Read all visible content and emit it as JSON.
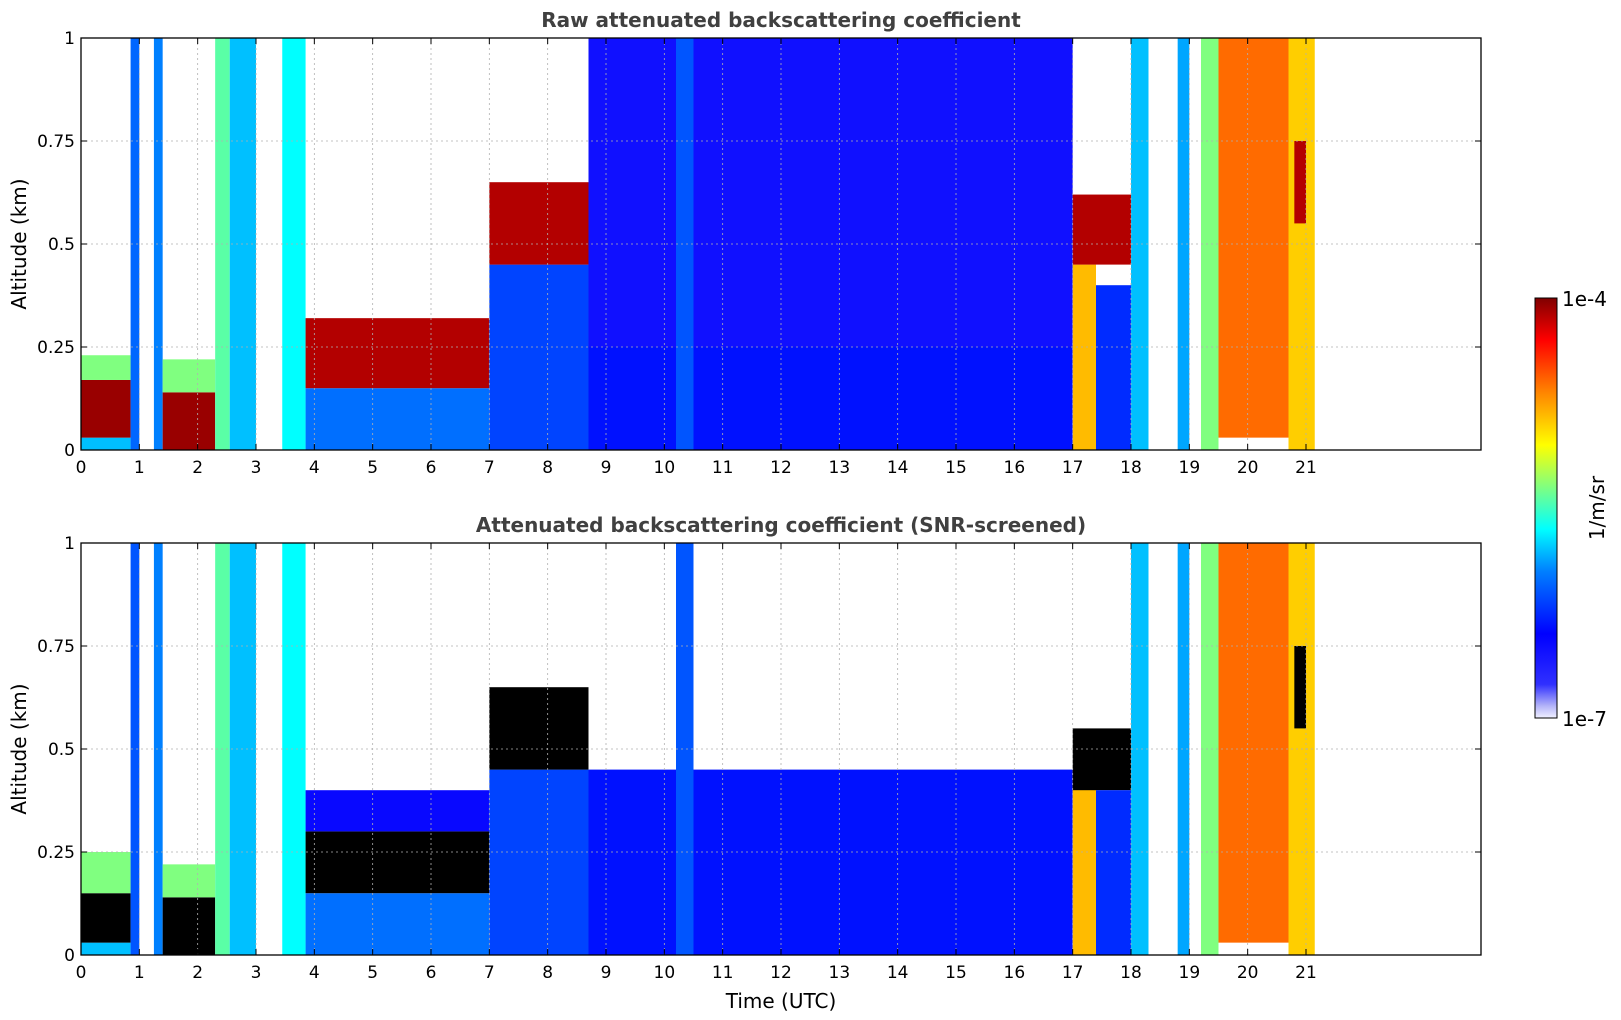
{
  "chart_data": [
    {
      "type": "heatmap",
      "title": "Raw attenuated backscattering coefficient",
      "xlabel": "",
      "ylabel": "Altitude (km)",
      "xlim": [
        0,
        24
      ],
      "ylim": [
        0,
        1
      ],
      "xticks": [
        "0",
        "1",
        "2",
        "3",
        "4",
        "5",
        "6",
        "7",
        "8",
        "9",
        "10",
        "11",
        "12",
        "13",
        "14",
        "15",
        "16",
        "17",
        "18",
        "19",
        "20",
        "21"
      ],
      "yticks": [
        "0",
        "0.25",
        "0.5",
        "0.75",
        "1"
      ],
      "grid": true,
      "data_extent_hours": [
        0,
        21.15
      ],
      "colorscale": "jet",
      "blocks": [
        {
          "t0": 0.0,
          "t1": 0.85,
          "y0": 0.0,
          "y1": 0.03,
          "level": 0.4
        },
        {
          "t0": 0.0,
          "t1": 0.85,
          "y0": 0.03,
          "y1": 0.17,
          "level": 0.98
        },
        {
          "t0": 0.0,
          "t1": 0.85,
          "y0": 0.17,
          "y1": 0.23,
          "level": 0.55
        },
        {
          "t0": 0.85,
          "t1": 1.0,
          "y0": 0.0,
          "y1": 1.0,
          "level": 0.32
        },
        {
          "t0": 1.25,
          "t1": 1.4,
          "y0": 0.0,
          "y1": 1.0,
          "level": 0.35
        },
        {
          "t0": 1.4,
          "t1": 2.3,
          "y0": 0.0,
          "y1": 0.14,
          "level": 0.98
        },
        {
          "t0": 1.4,
          "t1": 2.3,
          "y0": 0.14,
          "y1": 0.22,
          "level": 0.55
        },
        {
          "t0": 2.3,
          "t1": 2.55,
          "y0": 0.0,
          "y1": 1.0,
          "level": 0.52
        },
        {
          "t0": 2.55,
          "t1": 3.0,
          "y0": 0.0,
          "y1": 1.0,
          "level": 0.4
        },
        {
          "t0": 3.45,
          "t1": 3.85,
          "y0": 0.0,
          "y1": 1.0,
          "level": 0.45
        },
        {
          "t0": 3.85,
          "t1": 7.0,
          "y0": 0.0,
          "y1": 0.15,
          "level": 0.33
        },
        {
          "t0": 3.85,
          "t1": 7.0,
          "y0": 0.15,
          "y1": 0.32,
          "level": 0.96
        },
        {
          "t0": 7.0,
          "t1": 8.7,
          "y0": 0.0,
          "y1": 0.45,
          "level": 0.28
        },
        {
          "t0": 7.0,
          "t1": 8.7,
          "y0": 0.45,
          "y1": 0.65,
          "level": 0.96
        },
        {
          "t0": 8.7,
          "t1": 17.0,
          "y0": 0.0,
          "y1": 0.25,
          "level": 0.22
        },
        {
          "t0": 8.7,
          "t1": 17.0,
          "y0": 0.25,
          "y1": 1.0,
          "level": 0.16
        },
        {
          "t0": 10.2,
          "t1": 10.5,
          "y0": 0.0,
          "y1": 1.0,
          "level": 0.3
        },
        {
          "t0": 17.0,
          "t1": 17.4,
          "y0": 0.0,
          "y1": 0.45,
          "level": 0.72
        },
        {
          "t0": 17.0,
          "t1": 18.0,
          "y0": 0.45,
          "y1": 0.62,
          "level": 0.96
        },
        {
          "t0": 17.4,
          "t1": 18.0,
          "y0": 0.0,
          "y1": 0.4,
          "level": 0.25
        },
        {
          "t0": 18.0,
          "t1": 18.3,
          "y0": 0.0,
          "y1": 1.0,
          "level": 0.4
        },
        {
          "t0": 18.8,
          "t1": 19.0,
          "y0": 0.0,
          "y1": 1.0,
          "level": 0.38
        },
        {
          "t0": 19.2,
          "t1": 19.5,
          "y0": 0.0,
          "y1": 1.0,
          "level": 0.55
        },
        {
          "t0": 19.5,
          "t1": 20.7,
          "y0": 0.03,
          "y1": 1.0,
          "level": 0.8
        },
        {
          "t0": 20.7,
          "t1": 21.15,
          "y0": 0.0,
          "y1": 1.0,
          "level": 0.7
        },
        {
          "t0": 20.8,
          "t1": 21.0,
          "y0": 0.55,
          "y1": 0.75,
          "level": 0.96
        }
      ]
    },
    {
      "type": "heatmap",
      "title": "Attenuated backscattering coefficient (SNR-screened)",
      "xlabel": "Time (UTC)",
      "ylabel": "Altitude (km)",
      "xlim": [
        0,
        24
      ],
      "ylim": [
        0,
        1
      ],
      "xticks": [
        "0",
        "1",
        "2",
        "3",
        "4",
        "5",
        "6",
        "7",
        "8",
        "9",
        "10",
        "11",
        "12",
        "13",
        "14",
        "15",
        "16",
        "17",
        "18",
        "19",
        "20",
        "21"
      ],
      "yticks": [
        "0",
        "0.25",
        "0.5",
        "0.75",
        "1"
      ],
      "grid": true,
      "data_extent_hours": [
        0,
        21.15
      ],
      "colorscale": "jet",
      "blocks": [
        {
          "t0": 0.0,
          "t1": 0.85,
          "y0": 0.0,
          "y1": 0.03,
          "level": 0.4
        },
        {
          "t0": 0.0,
          "t1": 0.85,
          "y0": 0.03,
          "y1": 0.15,
          "level": 1.05
        },
        {
          "t0": 0.0,
          "t1": 0.85,
          "y0": 0.15,
          "y1": 0.25,
          "level": 0.55
        },
        {
          "t0": 0.85,
          "t1": 1.0,
          "y0": 0.0,
          "y1": 1.0,
          "level": 0.3
        },
        {
          "t0": 1.25,
          "t1": 1.4,
          "y0": 0.0,
          "y1": 1.0,
          "level": 0.35
        },
        {
          "t0": 1.4,
          "t1": 2.3,
          "y0": 0.0,
          "y1": 0.14,
          "level": 1.05
        },
        {
          "t0": 1.4,
          "t1": 2.3,
          "y0": 0.14,
          "y1": 0.22,
          "level": 0.55
        },
        {
          "t0": 2.3,
          "t1": 2.55,
          "y0": 0.0,
          "y1": 1.0,
          "level": 0.52
        },
        {
          "t0": 2.55,
          "t1": 3.0,
          "y0": 0.0,
          "y1": 1.0,
          "level": 0.4
        },
        {
          "t0": 3.45,
          "t1": 3.85,
          "y0": 0.0,
          "y1": 1.0,
          "level": 0.45
        },
        {
          "t0": 3.85,
          "t1": 7.0,
          "y0": 0.0,
          "y1": 0.15,
          "level": 0.33
        },
        {
          "t0": 3.85,
          "t1": 7.0,
          "y0": 0.15,
          "y1": 0.3,
          "level": 1.05
        },
        {
          "t0": 3.85,
          "t1": 7.0,
          "y0": 0.3,
          "y1": 0.4,
          "level": 0.18
        },
        {
          "t0": 7.0,
          "t1": 8.7,
          "y0": 0.0,
          "y1": 0.45,
          "level": 0.28
        },
        {
          "t0": 7.0,
          "t1": 8.7,
          "y0": 0.45,
          "y1": 0.65,
          "level": 1.05
        },
        {
          "t0": 8.7,
          "t1": 17.0,
          "y0": 0.0,
          "y1": 0.45,
          "level": 0.22
        },
        {
          "t0": 10.2,
          "t1": 10.5,
          "y0": 0.0,
          "y1": 1.0,
          "level": 0.3
        },
        {
          "t0": 17.0,
          "t1": 17.4,
          "y0": 0.0,
          "y1": 0.45,
          "level": 0.72
        },
        {
          "t0": 17.0,
          "t1": 18.0,
          "y0": 0.4,
          "y1": 0.55,
          "level": 1.05
        },
        {
          "t0": 17.4,
          "t1": 18.0,
          "y0": 0.0,
          "y1": 0.4,
          "level": 0.25
        },
        {
          "t0": 18.0,
          "t1": 18.3,
          "y0": 0.0,
          "y1": 1.0,
          "level": 0.4
        },
        {
          "t0": 18.8,
          "t1": 19.0,
          "y0": 0.0,
          "y1": 1.0,
          "level": 0.38
        },
        {
          "t0": 19.2,
          "t1": 19.5,
          "y0": 0.0,
          "y1": 1.0,
          "level": 0.55
        },
        {
          "t0": 19.5,
          "t1": 20.7,
          "y0": 0.03,
          "y1": 1.0,
          "level": 0.8
        },
        {
          "t0": 20.7,
          "t1": 21.15,
          "y0": 0.0,
          "y1": 1.0,
          "level": 0.7
        },
        {
          "t0": 20.8,
          "t1": 21.0,
          "y0": 0.55,
          "y1": 0.75,
          "level": 1.05
        }
      ]
    }
  ],
  "colorbar": {
    "label": "1/m/sr",
    "max_label": "1e-4",
    "min_label": "1e-7",
    "range": [
      1e-07,
      0.0001
    ],
    "scale": "log",
    "colormap": "jet"
  }
}
